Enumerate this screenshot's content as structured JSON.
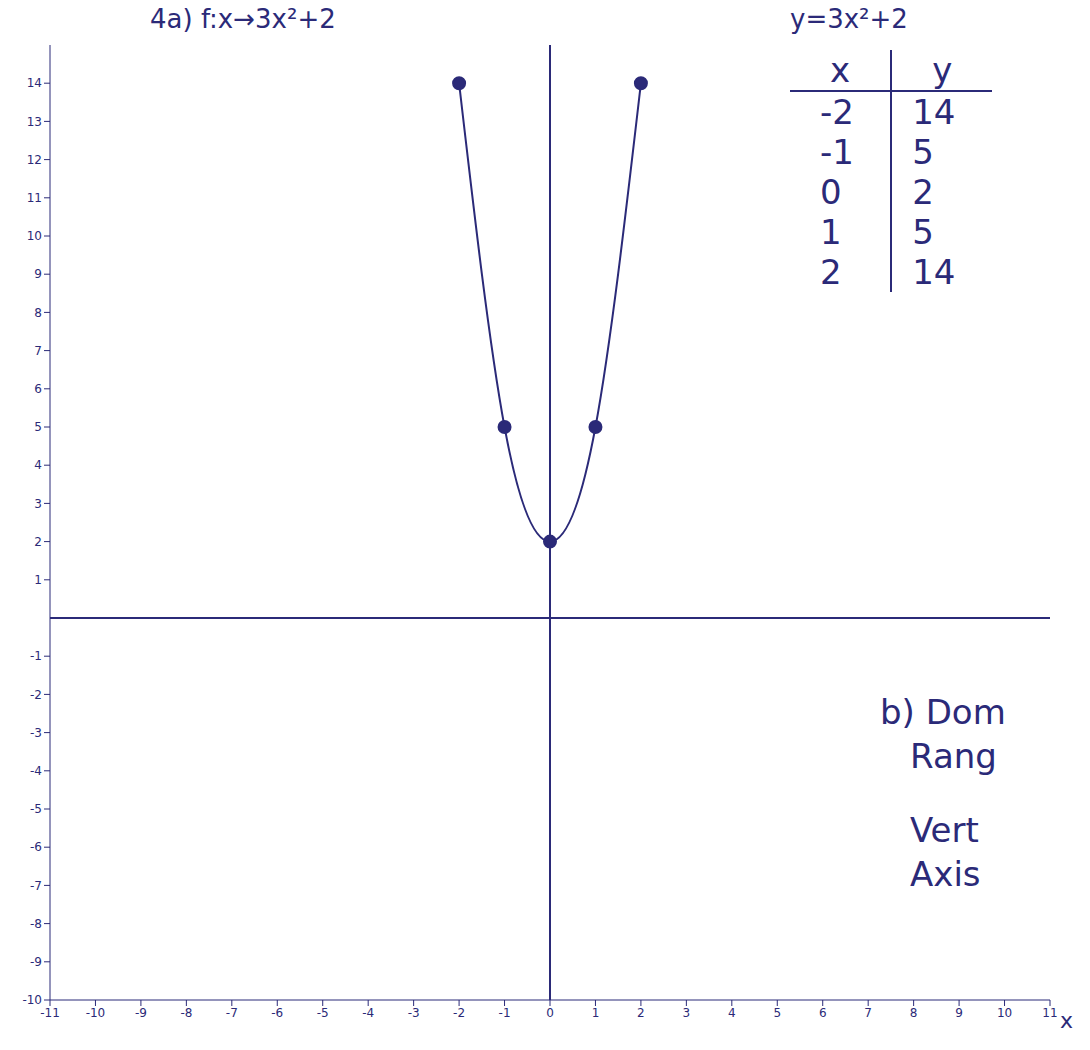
{
  "chart_data": {
    "type": "line",
    "title": "4a) f:x→3x²+2",
    "subtitle": "y=3x²+2",
    "x_label": "x",
    "table_headers": [
      "x",
      "y"
    ],
    "x": [
      -2,
      -1,
      0,
      1,
      2
    ],
    "values": [
      14,
      5,
      2,
      5,
      14
    ],
    "color": "#2b2a78",
    "marker": "circle",
    "line_style": "solid",
    "xlim": [
      -11,
      11
    ],
    "xticks": [
      -11,
      -10,
      -9,
      -8,
      -7,
      -6,
      -5,
      -4,
      -3,
      -2,
      -1,
      0,
      1,
      2,
      3,
      4,
      5,
      6,
      7,
      8,
      9,
      10,
      11
    ],
    "ylim": [
      -10,
      15
    ],
    "yticks": [
      -10,
      -9,
      -8,
      -7,
      -6,
      -5,
      -4,
      -3,
      -2,
      -1,
      1,
      2,
      3,
      4,
      5,
      6,
      7,
      8,
      9,
      10,
      11,
      12,
      13,
      14
    ],
    "grid": false,
    "annotations": [
      "b) Dom",
      "Rang",
      "Vert",
      "Axis"
    ]
  }
}
